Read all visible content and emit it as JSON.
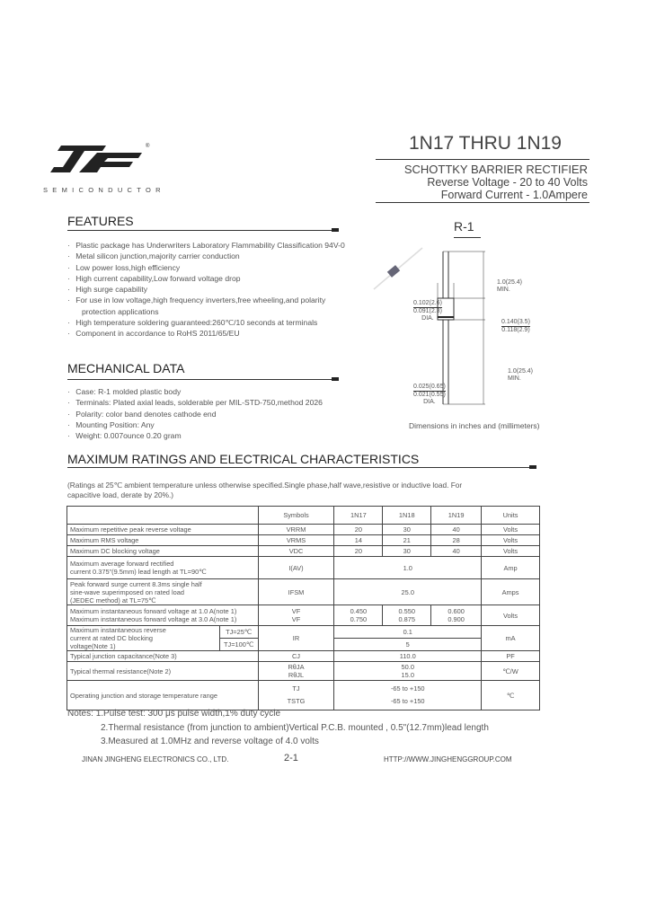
{
  "logo": {
    "text": "SEMICONDUCTOR",
    "mark": "JF",
    "registered": "®"
  },
  "header": {
    "title": "1N17 THRU 1N19",
    "type": "SCHOTTKY BARRIER RECTIFIER",
    "voltage": "Reverse Voltage - 20 to 40 Volts",
    "current": "Forward Current - 1.0Ampere"
  },
  "features": {
    "heading": "FEATURES",
    "items": [
      "Plastic package has Underwriters Laboratory Flammability Classification 94V-0",
      "Metal silicon junction,majority carrier conduction",
      "Low power loss,high efficiency",
      "High current capability,Low forward voltage drop",
      "High surge capability",
      "For use in low voltage,high frequency inverters,free wheeling,and polarity",
      "protection applications",
      "High temperature soldering guaranteed:260℃/10 seconds at terminals",
      "Component in accordance to RoHS 2011/65/EU"
    ]
  },
  "mechanical": {
    "heading": "MECHANICAL DATA",
    "items": [
      "Case: R-1 molded plastic body",
      "Terminals: Plated axial leads, solderable per MIL-STD-750,method 2026",
      "Polarity: color band denotes cathode end",
      "Mounting Position: Any",
      "Weight: 0.007ounce 0.20 gram"
    ]
  },
  "package": {
    "name": "R-1",
    "lead_len_top": "1.0(25.4)",
    "lead_len_top2": "MIN.",
    "body_dia_max": "0.102(2.6)",
    "body_dia_min": "0.091(2.3)",
    "dia": "DIA.",
    "body_len_max": "0.140(3.5)",
    "body_len_min": "0.118(2.9)",
    "lead_len_bot": "1.0(25.4)",
    "lead_len_bot2": "MIN.",
    "lead_dia_max": "0.025(0.65)",
    "lead_dia_min": "0.021(0.55)",
    "lead_dia_label": "DIA.",
    "caption": "Dimensions in inches and (millimeters)"
  },
  "ratings": {
    "heading": "MAXIMUM RATINGS AND ELECTRICAL CHARACTERISTICS",
    "note": "(Ratings at 25℃ ambient temperature unless otherwise specified.Single phase,half wave,resistive or inductive load. For capacitive load, derate by 20%.)",
    "headers": {
      "symbols": "Symbols",
      "c1": "1N17",
      "c2": "1N18",
      "c3": "1N19",
      "units": "Units"
    },
    "rows": {
      "vrrm": {
        "d": "Maximum repetitive peak reverse voltage",
        "s": "VRRM",
        "v": [
          "20",
          "30",
          "40"
        ],
        "u": "Volts"
      },
      "vrms": {
        "d": "Maximum RMS voltage",
        "s": "VRMS",
        "v": [
          "14",
          "21",
          "28"
        ],
        "u": "Volts"
      },
      "vdc": {
        "d": "Maximum DC blocking voltage",
        "s": "VDC",
        "v": [
          "20",
          "30",
          "40"
        ],
        "u": "Volts"
      },
      "iav": {
        "d1": "Maximum average forward rectified",
        "d2": "current 0.375\"(9.5mm) lead length at TL=90℃",
        "s": "I(AV)",
        "v": "1.0",
        "u": "Amp"
      },
      "ifsm": {
        "d1": "Peak forward surge current 8.3ms single half",
        "d2": "sine-wave superimposed on rated load",
        "d3": "(JEDEC method) at TL=75℃",
        "s": "IFSM",
        "v": "25.0",
        "u": "Amps"
      },
      "vf": {
        "d1": "Maximum instantaneous forward voltage at 1.0 A(note 1)",
        "d2": "Maximum instantaneous forward voltage at 3.0 A(note 1)",
        "s1": "VF",
        "s2": "VF",
        "v1": [
          "0.450",
          "0.550",
          "0.600"
        ],
        "v2": [
          "0.750",
          "0.875",
          "0.900"
        ],
        "u": "Volts"
      },
      "ir": {
        "d1": "Maximum instantaneous reverse",
        "d2": "current at rated DC blocking",
        "d3": "voltage(Note 1)",
        "t1": "TJ=25℃",
        "t2": "TJ=100℃",
        "s": "IR",
        "v1": "0.1",
        "v2": "5",
        "u": "mA"
      },
      "cj": {
        "d": "Typical junction capacitance(Note 3)",
        "s": "CJ",
        "v": "110.0",
        "u": "PF"
      },
      "rth": {
        "d": "Typical thermal resistance(Note 2)",
        "s1": "RθJA",
        "s2": "RθJL",
        "v1": "50.0",
        "v2": "15.0",
        "u": "℃/W"
      },
      "tj": {
        "d": "Operating junction and storage temperature range",
        "s1": "TJ",
        "s2": "TSTG",
        "v1": "-65 to +150",
        "v2": "-65 to +150",
        "u": "℃"
      }
    }
  },
  "notes": {
    "label": "Notes:",
    "n1": "1.Pulse test: 300  μs pulse width,1% duty cycle",
    "n2": "2.Thermal resistance (from junction to ambient)Vertical P.C.B. mounted , 0.5\"(12.7mm)lead length",
    "n3": "3.Measured at 1.0MHz and reverse voltage of 4.0 volts"
  },
  "footer": {
    "company": "JINAN JINGHENG ELECTRONICS  CO., LTD.",
    "page": "2-1",
    "url": "HTTP://WWW.JINGHENGGROUP.COM"
  }
}
